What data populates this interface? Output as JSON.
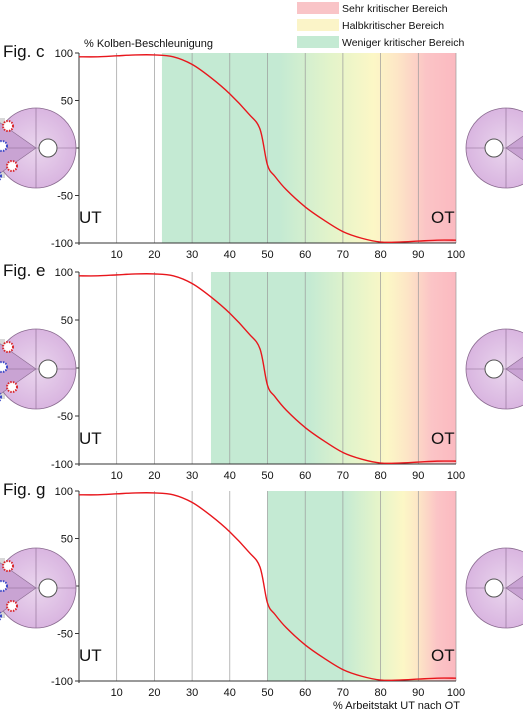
{
  "legend": [
    {
      "label": "Sehr kritischer Bereich",
      "color": "#f9c4c7"
    },
    {
      "label": "Halbkritischer Bereich",
      "color": "#fbf4c8"
    },
    {
      "label": "Weniger kritischer Bereich",
      "color": "#c4ead3"
    }
  ],
  "colors": {
    "curve": "#e8161c",
    "green": "#c4ead3",
    "yellow": "#fcf7c6",
    "red": "#fbbcc2",
    "grid": "#9a9a9a",
    "axis": "#333333"
  },
  "ylabel": "% Kolben-Beschleunigung",
  "xlabel": "% Arbeitstakt UT nach OT",
  "ut_label": "UT",
  "ot_label": "OT",
  "chart_data": [
    {
      "type": "line",
      "title": "Fig. c",
      "xlim": [
        0,
        100
      ],
      "ylim": [
        -100,
        100
      ],
      "xticks": [
        10,
        20,
        30,
        40,
        50,
        60,
        70,
        80,
        90,
        100
      ],
      "yticks": [
        100,
        50,
        0,
        -50,
        -100
      ],
      "zone_start": 22,
      "series": [
        {
          "x": [
            0,
            5,
            10,
            15,
            20,
            25,
            30,
            35,
            40,
            45,
            48,
            50,
            52,
            55,
            60,
            65,
            70,
            75,
            80,
            85,
            90,
            95,
            100
          ],
          "values": [
            96,
            96,
            97,
            98,
            98,
            96,
            88,
            74,
            57,
            36,
            20,
            -18,
            -30,
            -44,
            -62,
            -76,
            -88,
            -95,
            -99,
            -99,
            -98,
            -97,
            -97
          ]
        }
      ]
    },
    {
      "type": "line",
      "title": "Fig. e",
      "xlim": [
        0,
        100
      ],
      "ylim": [
        -100,
        100
      ],
      "xticks": [
        10,
        20,
        30,
        40,
        50,
        60,
        70,
        80,
        90,
        100
      ],
      "yticks": [
        100,
        50,
        0,
        -50,
        -100
      ],
      "zone_start": 35,
      "series": [
        {
          "x": [
            0,
            5,
            10,
            15,
            20,
            25,
            30,
            35,
            40,
            45,
            48,
            50,
            52,
            55,
            60,
            65,
            70,
            75,
            80,
            85,
            90,
            95,
            100
          ],
          "values": [
            96,
            96,
            97,
            98,
            98,
            96,
            88,
            74,
            57,
            36,
            20,
            -18,
            -30,
            -44,
            -62,
            -76,
            -88,
            -95,
            -99,
            -99,
            -98,
            -97,
            -97
          ]
        }
      ]
    },
    {
      "type": "line",
      "title": "Fig. g",
      "xlim": [
        0,
        100
      ],
      "ylim": [
        -100,
        100
      ],
      "xticks": [
        10,
        20,
        30,
        40,
        50,
        60,
        70,
        80,
        90,
        100
      ],
      "yticks": [
        100,
        50,
        0,
        -50,
        -100
      ],
      "zone_start": 50,
      "series": [
        {
          "x": [
            0,
            5,
            10,
            15,
            20,
            25,
            30,
            35,
            40,
            45,
            48,
            50,
            52,
            55,
            60,
            65,
            70,
            75,
            80,
            85,
            90,
            95,
            100
          ],
          "values": [
            96,
            96,
            97,
            98,
            98,
            96,
            88,
            74,
            57,
            36,
            20,
            -18,
            -30,
            -44,
            -62,
            -76,
            -88,
            -95,
            -99,
            -99,
            -98,
            -97,
            -97
          ]
        }
      ]
    }
  ]
}
